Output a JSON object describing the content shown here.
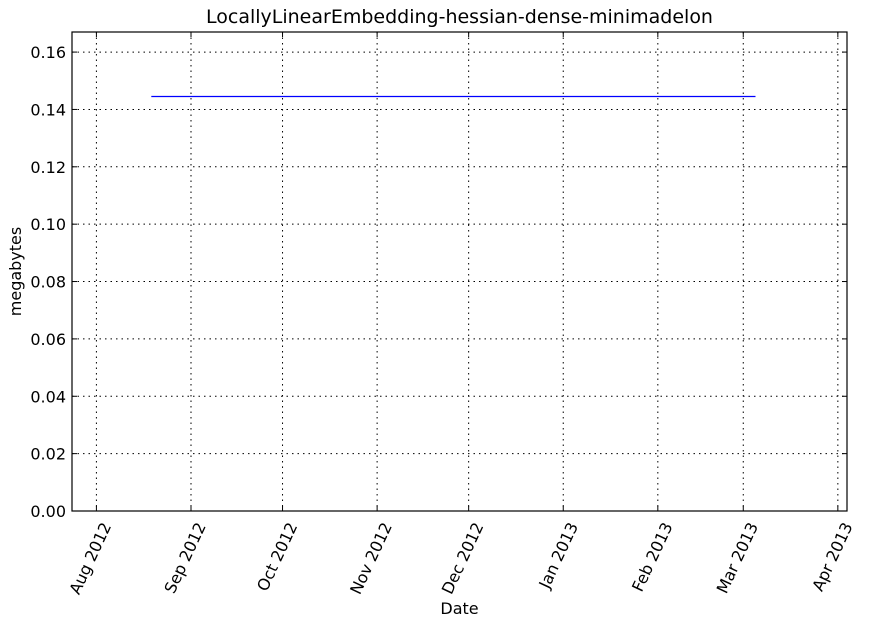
{
  "chart_data": {
    "type": "line",
    "title": "LocallyLinearEmbedding-hessian-dense-minimadelon",
    "xlabel": "Date",
    "ylabel": "megabytes",
    "x_type": "date",
    "xlim": [
      "2012-07-24",
      "2013-04-04"
    ],
    "ylim": [
      0,
      0.167
    ],
    "grid": true,
    "x_ticks": [
      {
        "date": "2012-08-01",
        "label": "Aug 2012"
      },
      {
        "date": "2012-09-01",
        "label": "Sep 2012"
      },
      {
        "date": "2012-10-01",
        "label": "Oct 2012"
      },
      {
        "date": "2012-11-01",
        "label": "Nov 2012"
      },
      {
        "date": "2012-12-01",
        "label": "Dec 2012"
      },
      {
        "date": "2013-01-01",
        "label": "Jan 2013"
      },
      {
        "date": "2013-02-01",
        "label": "Feb 2013"
      },
      {
        "date": "2013-03-01",
        "label": "Mar 2013"
      },
      {
        "date": "2013-04-01",
        "label": "Apr 2013"
      }
    ],
    "y_ticks": [
      {
        "value": 0.0,
        "label": "0.00"
      },
      {
        "value": 0.02,
        "label": "0.02"
      },
      {
        "value": 0.04,
        "label": "0.04"
      },
      {
        "value": 0.06,
        "label": "0.06"
      },
      {
        "value": 0.08,
        "label": "0.08"
      },
      {
        "value": 0.1,
        "label": "0.10"
      },
      {
        "value": 0.12,
        "label": "0.12"
      },
      {
        "value": 0.14,
        "label": "0.14"
      },
      {
        "value": 0.16,
        "label": "0.16"
      }
    ],
    "series": [
      {
        "color": "#0000ff",
        "points": [
          {
            "x": "2012-08-19",
            "y": 0.1445
          },
          {
            "x": "2013-03-05",
            "y": 0.1445
          }
        ]
      }
    ]
  }
}
